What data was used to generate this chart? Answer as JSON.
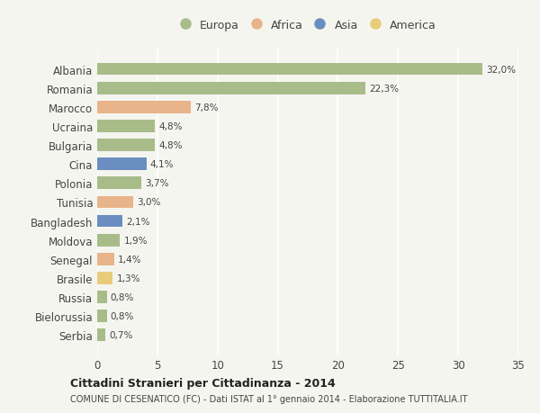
{
  "countries": [
    "Albania",
    "Romania",
    "Marocco",
    "Ucraina",
    "Bulgaria",
    "Cina",
    "Polonia",
    "Tunisia",
    "Bangladesh",
    "Moldova",
    "Senegal",
    "Brasile",
    "Russia",
    "Bielorussia",
    "Serbia"
  ],
  "values": [
    32.0,
    22.3,
    7.8,
    4.8,
    4.8,
    4.1,
    3.7,
    3.0,
    2.1,
    1.9,
    1.4,
    1.3,
    0.8,
    0.8,
    0.7
  ],
  "labels": [
    "32,0%",
    "22,3%",
    "7,8%",
    "4,8%",
    "4,8%",
    "4,1%",
    "3,7%",
    "3,0%",
    "2,1%",
    "1,9%",
    "1,4%",
    "1,3%",
    "0,8%",
    "0,8%",
    "0,7%"
  ],
  "continents": [
    "Europa",
    "Europa",
    "Africa",
    "Europa",
    "Europa",
    "Asia",
    "Europa",
    "Africa",
    "Asia",
    "Europa",
    "Africa",
    "America",
    "Europa",
    "Europa",
    "Europa"
  ],
  "colors": {
    "Europa": "#a8bc8a",
    "Africa": "#e8b48a",
    "Asia": "#6b8ec0",
    "America": "#e8cc7a"
  },
  "legend_order": [
    "Europa",
    "Africa",
    "Asia",
    "America"
  ],
  "bg_color": "#f5f5f0",
  "grid_color": "#ffffff",
  "title": "Cittadini Stranieri per Cittadinanza - 2014",
  "subtitle": "COMUNE DI CESENATICO (FC) - Dati ISTAT al 1° gennaio 2014 - Elaborazione TUTTITALIA.IT",
  "xlim": [
    0,
    35
  ],
  "xticks": [
    0,
    5,
    10,
    15,
    20,
    25,
    30,
    35
  ],
  "bar_height": 0.65
}
